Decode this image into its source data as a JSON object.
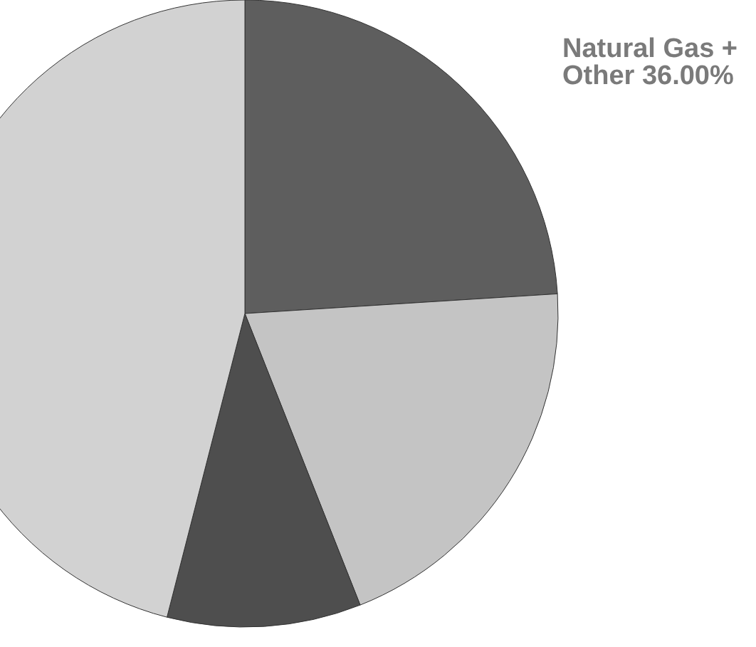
{
  "chart_data": {
    "type": "pie",
    "categories": [
      null,
      null,
      null,
      null
    ],
    "values": [
      24,
      20,
      10,
      46
    ],
    "colors": [
      "#5e5e5e",
      "#c4c4c4",
      "#4e4e4e",
      "#d2d2d2"
    ],
    "annotations": [
      "Natural Gas + Other 36.00%"
    ]
  }
}
